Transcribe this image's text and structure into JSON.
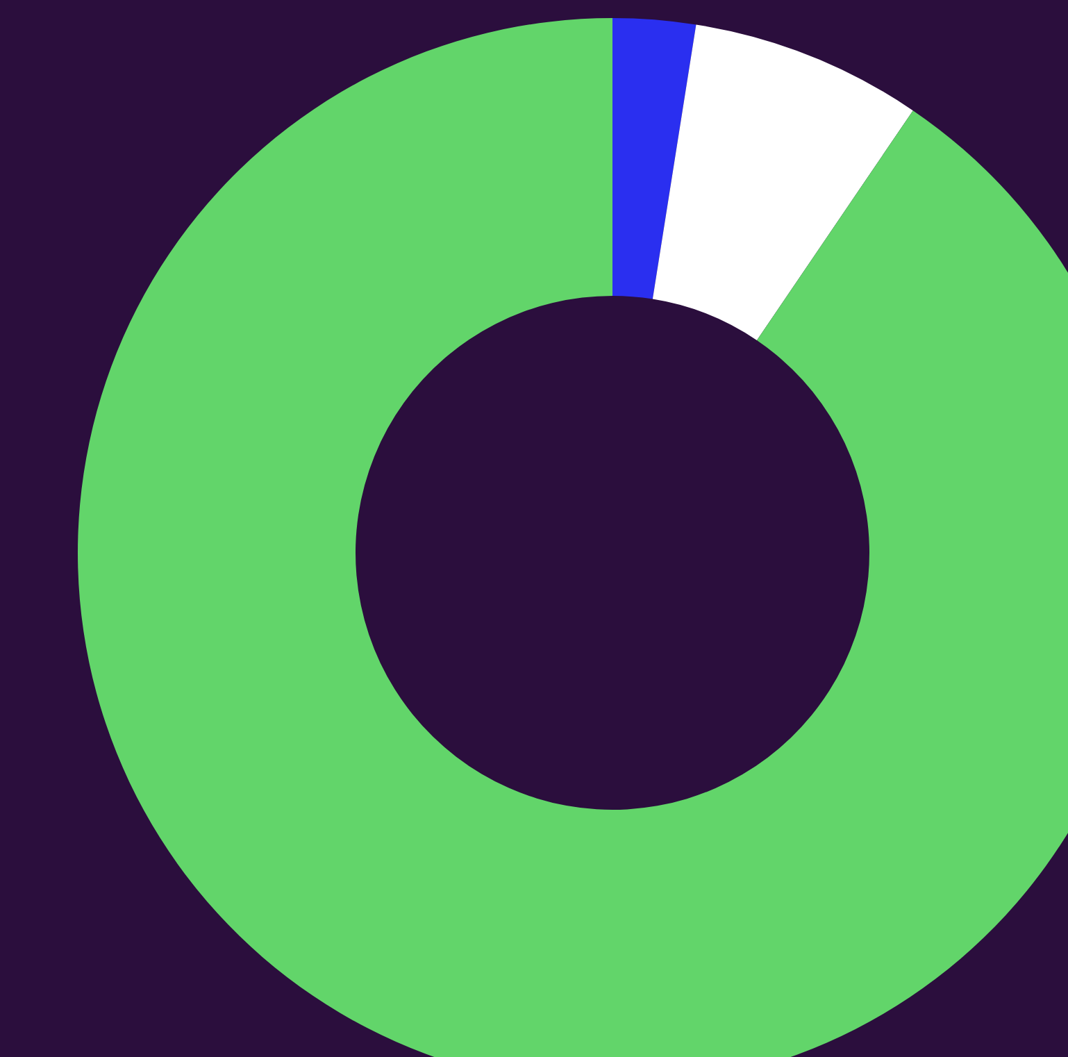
{
  "chart_data": {
    "type": "donut",
    "categories": [
      null,
      null,
      null
    ],
    "values": [
      2.5,
      7,
      90.5
    ],
    "colors": [
      "#2a2ff0",
      "#ffffff",
      "#62d56a"
    ]
  }
}
